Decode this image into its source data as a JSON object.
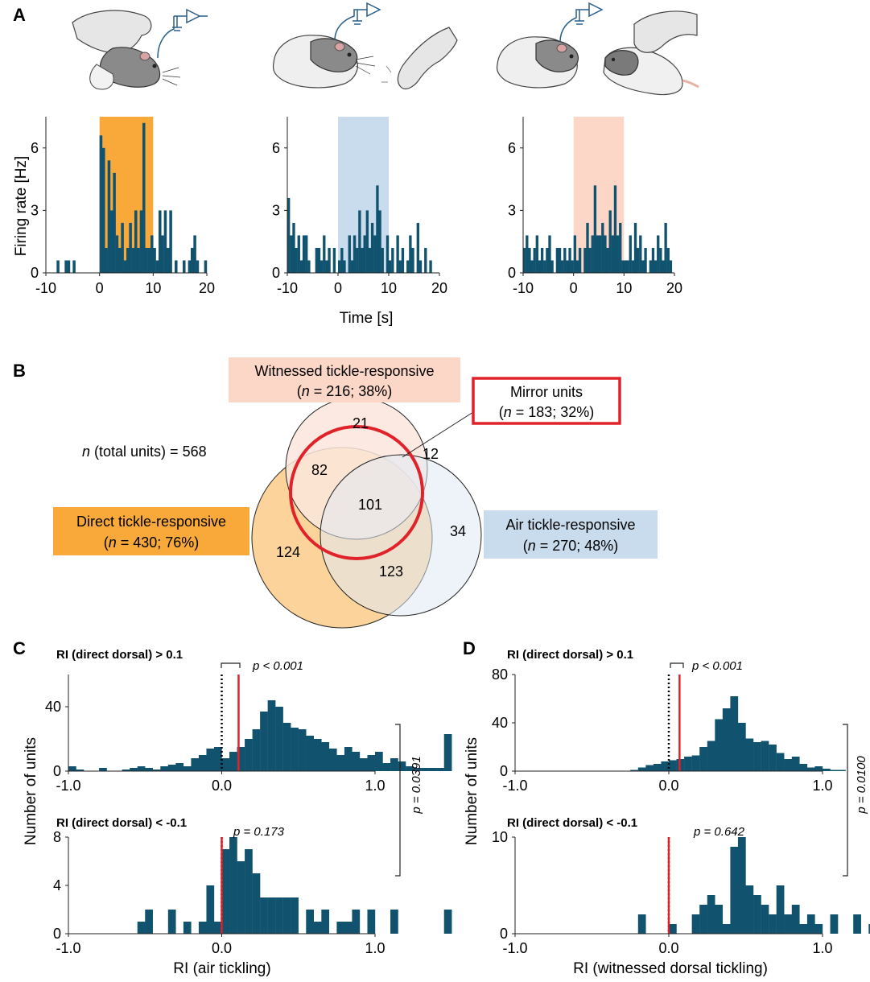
{
  "panel_letters": {
    "a": "A",
    "b": "B",
    "c": "C",
    "d": "D"
  },
  "colors": {
    "bar": "#11536e",
    "direct": "#f9a93a",
    "direct_light": "#fcd49b",
    "air": "#c8dcee",
    "air_light": "#dfe9f4",
    "witnessed": "#fcd6c6",
    "witnessed_light": "#fbe6dd",
    "mirror": "#e0222a",
    "mean_line": "#e0222a"
  },
  "icons": [
    "hand-tickling-rat-icon",
    "rat-with-electrode-icon",
    "hand-tickling-air-icon",
    "rat-observing-tickling-icon",
    "electrode-amplifier-icon"
  ],
  "panel_a": {
    "ylabel": "Firing rate [Hz]",
    "xlabel": "Time [s]",
    "yticks": [
      "0",
      "3",
      "6"
    ],
    "xticks": [
      "-10",
      "0",
      "10",
      "20"
    ]
  },
  "venn": {
    "total_label": "n (total units) = 568",
    "total_n_prefix": "n",
    "total_rest": " (total units) = 568",
    "witnessed_title": "Witnessed tickle-responsive",
    "witnessed_stats": "(n = 216; 38%)",
    "witnessed_stats_parts": [
      "(",
      "n",
      " = 216; 38%)"
    ],
    "mirror_title": "Mirror units",
    "mirror_stats_parts": [
      "(",
      "n",
      " = 183; 32%)"
    ],
    "direct_title": "Direct tickle-responsive",
    "direct_stats_parts": [
      "(",
      "n",
      " = 430; 76%)"
    ],
    "air_title": "Air tickle-responsive",
    "air_stats_parts": [
      "(",
      "n",
      " = 270; 48%)"
    ],
    "counts": {
      "witnessed_only": "21",
      "witnessed_air": "12",
      "direct_witnessed": "82",
      "all_three": "101",
      "air_only": "34",
      "direct_only": "124",
      "direct_air": "123"
    }
  },
  "panel_c": {
    "top_title": "RI (direct dorsal) > 0.1",
    "top_p": "p < 0.001",
    "bottom_title": "RI (direct dorsal) < -0.1",
    "bottom_p": "p = 0.173",
    "side_p": "p = 0.0391",
    "xlabel": "RI (air tickling)",
    "ylabel": "Number of units",
    "top_yticks": [
      "0",
      "40"
    ],
    "bottom_yticks": [
      "0",
      "4",
      "8"
    ],
    "xticks": [
      "-1.0",
      "0.0",
      "1.0"
    ]
  },
  "panel_d": {
    "top_title": "RI (direct dorsal) > 0.1",
    "top_p": "p < 0.001",
    "bottom_title": "RI (direct dorsal) < -0.1",
    "bottom_p": "p = 0.642",
    "side_p": "p = 0.0100",
    "xlabel": "RI (witnessed dorsal tickling)",
    "ylabel": "Number of units",
    "top_yticks": [
      "0",
      "40",
      "80"
    ],
    "bottom_yticks": [
      "0",
      "10"
    ],
    "xticks": [
      "-1.0",
      "0.0",
      "1.0"
    ]
  },
  "chart_data": [
    {
      "type": "bar",
      "id": "A-direct",
      "xlabel": "Time [s]",
      "ylabel": "Firing rate [Hz]",
      "xlim": [
        -10,
        20
      ],
      "ylim": [
        0,
        7.5
      ],
      "bin_width": 0.5,
      "bin_start": -10,
      "shaded_interval": [
        0,
        10
      ],
      "values": [
        0,
        0,
        0,
        0,
        0.6,
        0,
        0,
        0.6,
        0.6,
        0,
        0.6,
        0,
        0,
        0,
        0,
        0,
        0,
        0,
        0,
        0,
        6.6,
        6.0,
        1.2,
        5.4,
        3.0,
        4.8,
        1.8,
        1.2,
        2.4,
        0.6,
        1.2,
        2.4,
        1.2,
        3.0,
        1.2,
        3.0,
        7.2,
        1.2,
        1.2,
        1.8,
        1.2,
        0.6,
        3.0,
        1.8,
        3.0,
        1.2,
        3.0,
        0,
        0.6,
        0,
        0,
        0.6,
        0,
        0.6,
        1.2,
        1.8,
        0.6,
        0,
        0,
        0.6
      ]
    },
    {
      "type": "bar",
      "id": "A-air",
      "xlabel": "Time [s]",
      "ylabel": "Firing rate [Hz]",
      "xlim": [
        -10,
        20
      ],
      "ylim": [
        0,
        7.5
      ],
      "bin_width": 0.5,
      "bin_start": -10,
      "shaded_interval": [
        0,
        10
      ],
      "values": [
        3.6,
        1.8,
        2.4,
        1.2,
        1.8,
        0.6,
        1.8,
        1.8,
        0.6,
        0,
        0,
        1.2,
        1.2,
        0.6,
        1.8,
        0.6,
        1.2,
        0,
        1.2,
        0,
        0.6,
        1.2,
        0.6,
        0,
        1.8,
        0.6,
        1.8,
        1.2,
        3.0,
        1.2,
        1.8,
        3.0,
        1.2,
        2.4,
        1.8,
        4.2,
        3.0,
        1.2,
        0,
        1.8,
        0.6,
        1.2,
        0,
        1.8,
        0.6,
        1.2,
        0,
        0.6,
        1.8,
        1.2,
        0,
        2.4,
        0.6,
        0,
        1.2,
        0,
        0.6,
        0,
        0,
        0
      ]
    },
    {
      "type": "bar",
      "id": "A-witnessed",
      "xlabel": "Time [s]",
      "ylabel": "Firing rate [Hz]",
      "xlim": [
        -10,
        20
      ],
      "ylim": [
        0,
        7.5
      ],
      "bin_width": 0.5,
      "bin_start": -10,
      "shaded_interval": [
        0,
        10
      ],
      "values": [
        1.2,
        1.8,
        1.2,
        0.6,
        1.2,
        1.8,
        0.6,
        1.2,
        0.6,
        1.2,
        1.8,
        0.6,
        0,
        1.2,
        1.2,
        0.6,
        1.2,
        0.6,
        1.2,
        0.6,
        1.8,
        0.6,
        1.2,
        0,
        1.2,
        2.4,
        1.2,
        1.8,
        4.2,
        1.8,
        1.8,
        2.4,
        1.8,
        1.2,
        3.0,
        1.8,
        4.2,
        1.8,
        2.4,
        0.6,
        0.6,
        0.6,
        1.8,
        0.6,
        2.4,
        1.2,
        1.8,
        0.6,
        1.2,
        0,
        0.6,
        1.2,
        0.6,
        1.8,
        1.2,
        0.6,
        2.4,
        1.2,
        0.6,
        0
      ]
    },
    {
      "type": "bar",
      "id": "C-top",
      "title": "RI (direct dorsal) > 0.1",
      "xlabel": "RI (air tickling)",
      "ylabel": "Number of units",
      "xlim": [
        -1.0,
        1.0
      ],
      "ylim": [
        0,
        60
      ],
      "bin_width": 0.05,
      "bin_start": -1.0,
      "values": [
        3,
        1,
        0,
        0,
        2,
        0,
        0,
        1,
        2,
        3,
        2,
        1,
        3,
        4,
        5,
        3,
        8,
        10,
        14,
        15,
        8,
        12,
        15,
        20,
        26,
        37,
        44,
        40,
        30,
        27,
        26,
        22,
        20,
        18,
        14,
        10,
        15,
        12,
        8,
        10,
        12,
        5,
        8,
        6,
        3,
        2,
        2,
        2,
        2,
        23
      ],
      "median_line": 0.11,
      "reference_line": 0.0,
      "annotation": "p < 0.001"
    },
    {
      "type": "bar",
      "id": "C-bottom",
      "title": "RI (direct dorsal) < -0.1",
      "xlabel": "RI (air tickling)",
      "ylabel": "Number of units",
      "xlim": [
        -1.0,
        1.0
      ],
      "ylim": [
        0,
        8
      ],
      "bin_width": 0.05,
      "bin_start": -1.0,
      "values": [
        0,
        0,
        0,
        0,
        0,
        0,
        0,
        0,
        0,
        1,
        2,
        0,
        0,
        2,
        0,
        1,
        0,
        1,
        4,
        1,
        7,
        8,
        6,
        7,
        5,
        3,
        3,
        3,
        3,
        3,
        0,
        2,
        1,
        2,
        0,
        1,
        1,
        2,
        0,
        2,
        0,
        0,
        2,
        0,
        0,
        0,
        0,
        0,
        0,
        2
      ],
      "median_line": 0.0,
      "reference_line": 0.0,
      "annotation": "p = 0.173"
    },
    {
      "type": "bar",
      "id": "D-top",
      "title": "RI (direct dorsal) > 0.1",
      "xlabel": "RI (witnessed dorsal tickling)",
      "ylabel": "Number of units",
      "xlim": [
        -1.0,
        1.0
      ],
      "ylim": [
        0,
        80
      ],
      "bin_width": 0.05,
      "bin_start": -1.0,
      "values": [
        0,
        0,
        0,
        0,
        0,
        0,
        0,
        0,
        0,
        0,
        0,
        0,
        0,
        0,
        0,
        1,
        3,
        5,
        6,
        8,
        9,
        10,
        12,
        13,
        20,
        25,
        43,
        52,
        62,
        40,
        27,
        24,
        25,
        22,
        15,
        10,
        12,
        6,
        3,
        4,
        2,
        1,
        1,
        0,
        0,
        0,
        0,
        0,
        0,
        8
      ],
      "median_line": 0.07,
      "reference_line": 0.0,
      "annotation": "p < 0.001"
    },
    {
      "type": "bar",
      "id": "D-bottom",
      "title": "RI (direct dorsal) < -0.1",
      "xlabel": "RI (witnessed dorsal tickling)",
      "ylabel": "Number of units",
      "xlim": [
        -1.0,
        1.0
      ],
      "ylim": [
        0,
        10
      ],
      "bin_width": 0.05,
      "bin_start": -1.0,
      "values": [
        0,
        0,
        0,
        0,
        0,
        0,
        0,
        0,
        0,
        0,
        0,
        0,
        0,
        0,
        0,
        0,
        2,
        0,
        0,
        0,
        1,
        0,
        0,
        2,
        3,
        4,
        3,
        1,
        9,
        10,
        5,
        4,
        3,
        2,
        5,
        2,
        3,
        1,
        2,
        1,
        0,
        2,
        0,
        0,
        2,
        0,
        1,
        0,
        1,
        0
      ],
      "median_line": 0.0,
      "reference_line": 0.0,
      "annotation": "p = 0.642"
    }
  ]
}
